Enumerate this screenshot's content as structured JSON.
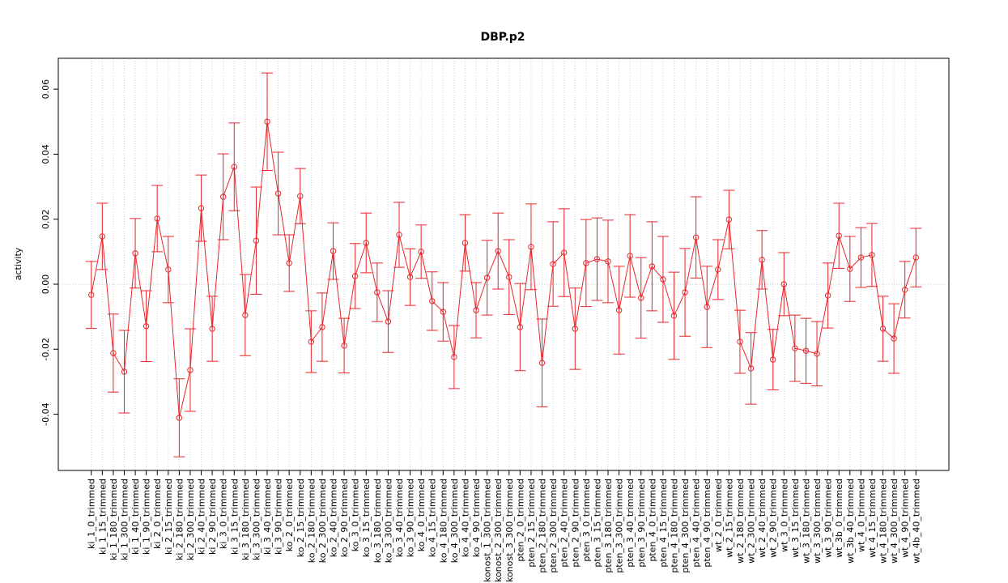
{
  "chart_data": {
    "type": "errorbar",
    "title": "DBP.p2",
    "y_label": "activity",
    "color": "#e8262b",
    "categories": [
      "ki_1_0_trimmed",
      "ki_1_15_trimmed",
      "ki_1_180_trimmed",
      "ki_1_300_trimmed",
      "ki_1_40_trimmed",
      "ki_1_90_trimmed",
      "ki_2_0_trimmed",
      "ki_2_15_trimmed",
      "ki_2_180_trimmed",
      "ki_2_300_trimmed",
      "ki_2_40_trimmed",
      "ki_2_90_trimmed",
      "ki_3_0_trimmed",
      "ki_3_15_trimmed",
      "ki_3_180_trimmed",
      "ki_3_300_trimmed",
      "ki_3_40_trimmed",
      "ki_3_90_trimmed",
      "ko_2_0_trimmed",
      "ko_2_15_trimmed",
      "ko_2_180_trimmed",
      "ko_2_300_trimmed",
      "ko_2_40_trimmed",
      "ko_2_90_trimmed",
      "ko_3_0_trimmed",
      "ko_3_15_trimmed",
      "ko_3_180_trimmed",
      "ko_3_300_trimmed",
      "ko_3_40_trimmed",
      "ko_3_90_trimmed",
      "ko_4_0_trimmed",
      "ko_4_15_trimmed",
      "ko_4_180_trimmed",
      "ko_4_300_trimmed",
      "ko_4_40_trimmed",
      "ko_4_90_trimmed",
      "konost_1_300_trimmed",
      "konost_2_300_trimmed",
      "konost_3_300_trimmed",
      "pten_2_0_trimmed",
      "pten_2_15_trimmed",
      "pten_2_180_trimmed",
      "pten_2_300_trimmed",
      "pten_2_40_trimmed",
      "pten_2_90_trimmed",
      "pten_3_0_trimmed",
      "pten_3_15_trimmed",
      "pten_3_180_trimmed",
      "pten_3_300_trimmed",
      "pten_3_40_trimmed",
      "pten_3_90_trimmed",
      "pten_4_0_trimmed",
      "pten_4_15_trimmed",
      "pten_4_180_trimmed",
      "pten_4_300_trimmed",
      "pten_4_40_trimmed",
      "pten_4_90_trimmed",
      "wt_2_0_trimmed",
      "wt_2_15_trimmed",
      "wt_2_180_trimmed",
      "wt_2_300_trimmed",
      "wt_2_40_trimmed",
      "wt_2_90_trimmed",
      "wt_3_0_trimmed",
      "wt_3_15_trimmed",
      "wt_3_180_trimmed",
      "wt_3_300_trimmed",
      "wt_3_90_trimmed",
      "wt_3b_0_trimmed",
      "wt_3b_40_trimmed",
      "wt_4_0_trimmed",
      "wt_4_15_trimmed",
      "wt_4_180_trimmed",
      "wt_4_300_trimmed",
      "wt_4_90_trimmed",
      "wt_4b_40_trimmed"
    ],
    "values": [
      -0.0033,
      0.0147,
      -0.0212,
      -0.0269,
      0.0095,
      -0.0129,
      0.0202,
      0.0045,
      -0.0411,
      -0.0264,
      0.0234,
      -0.0137,
      0.0269,
      0.0361,
      -0.0095,
      0.0134,
      0.05,
      0.0279,
      0.0065,
      0.0271,
      -0.0177,
      -0.0132,
      0.0102,
      -0.0189,
      0.0025,
      0.0127,
      -0.0025,
      -0.0115,
      0.0152,
      0.0022,
      0.01,
      -0.0052,
      -0.0085,
      -0.0224,
      0.0127,
      -0.008,
      0.002,
      0.0102,
      0.0022,
      -0.0132,
      0.0115,
      -0.0242,
      0.0062,
      0.0097,
      -0.0137,
      0.0065,
      0.0077,
      0.007,
      -0.008,
      0.0087,
      -0.0042,
      0.0055,
      0.0015,
      -0.0097,
      -0.0025,
      0.0144,
      -0.007,
      0.0045,
      0.0199,
      -0.0177,
      -0.0259,
      0.0075,
      -0.0232,
      0,
      -0.0197,
      -0.0205,
      -0.0214,
      -0.0035,
      0.0149,
      0.0047,
      0.0082,
      0.009,
      -0.0137,
      -0.0167,
      -0.0017,
      0.0082
    ],
    "errors": [
      0.0103,
      0.0102,
      0.012,
      0.0127,
      0.0107,
      0.0109,
      0.0102,
      0.0102,
      0.012,
      0.0127,
      0.0102,
      0.01,
      0.0132,
      0.0135,
      0.0125,
      0.0165,
      0.015,
      0.0127,
      0.0087,
      0.0085,
      0.0095,
      0.0105,
      0.0087,
      0.0084,
      0.01,
      0.0092,
      0.009,
      0.0095,
      0.01,
      0.0087,
      0.0082,
      0.009,
      0.009,
      0.0097,
      0.0087,
      0.0085,
      0.0115,
      0.0117,
      0.0115,
      0.0134,
      0.0132,
      0.0135,
      0.013,
      0.0135,
      0.0125,
      0.0134,
      0.0127,
      0.0127,
      0.0135,
      0.0127,
      0.0124,
      0.0137,
      0.0132,
      0.0134,
      0.0135,
      0.0125,
      0.0125,
      0.0092,
      0.009,
      0.0097,
      0.011,
      0.009,
      0.0093,
      0.0097,
      0.0102,
      0.01,
      0.0099,
      0.01,
      0.01,
      0.01,
      0.0092,
      0.0097,
      0.01,
      0.0107,
      0.0087,
      0.009
    ],
    "ylim": [
      -0.0573,
      0.0695
    ],
    "yticks": [
      -0.04,
      -0.02,
      {
        "value": 0,
        "label": "0.00"
      },
      0.02,
      0.04,
      0.06
    ],
    "hline": 0,
    "grid": true
  }
}
